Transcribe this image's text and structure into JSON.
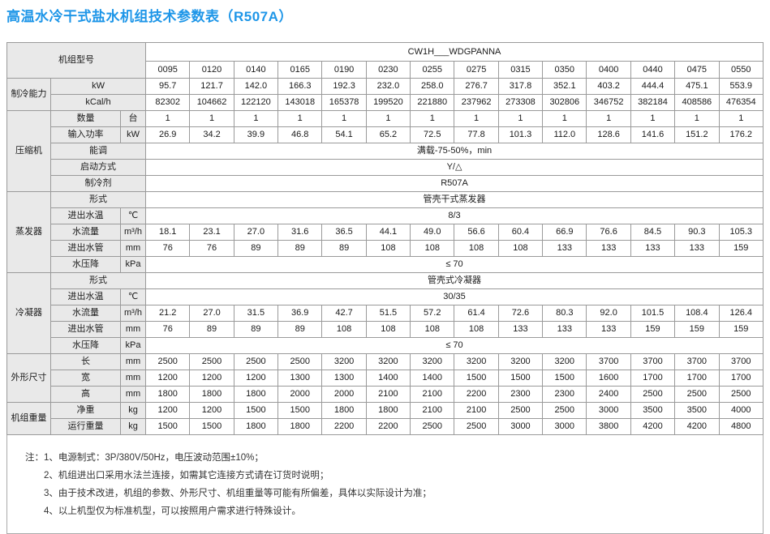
{
  "title": "高温水冷干式盐水机组技术参数表（R507A）",
  "colors": {
    "title_blue": "#1E96E8",
    "header_gray": "#E9E9E9",
    "grid_border": "#9A9A9A"
  },
  "table": {
    "model_label": "机组型号",
    "series_header": "CW1H___WDGPANNA",
    "models": [
      "0095",
      "0120",
      "0140",
      "0165",
      "0190",
      "0230",
      "0255",
      "0275",
      "0315",
      "0350",
      "0400",
      "0440",
      "0475",
      "0550"
    ],
    "sections": [
      {
        "name": "制冷能力",
        "rows": [
          {
            "param": "kW",
            "values": [
              "95.7",
              "121.7",
              "142.0",
              "166.3",
              "192.3",
              "232.0",
              "258.0",
              "276.7",
              "317.8",
              "352.1",
              "403.2",
              "444.4",
              "475.1",
              "553.9"
            ]
          },
          {
            "param": "kCal/h",
            "values": [
              "82302",
              "104662",
              "122120",
              "143018",
              "165378",
              "199520",
              "221880",
              "237962",
              "273308",
              "302806",
              "346752",
              "382184",
              "408586",
              "476354"
            ]
          }
        ]
      },
      {
        "name": "压缩机",
        "rows": [
          {
            "param": "数量",
            "unit": "台",
            "values": [
              "1",
              "1",
              "1",
              "1",
              "1",
              "1",
              "1",
              "1",
              "1",
              "1",
              "1",
              "1",
              "1",
              "1"
            ]
          },
          {
            "param": "输入功率",
            "unit": "kW",
            "values": [
              "26.9",
              "34.2",
              "39.9",
              "46.8",
              "54.1",
              "65.2",
              "72.5",
              "77.8",
              "101.3",
              "112.0",
              "128.6",
              "141.6",
              "151.2",
              "176.2"
            ]
          },
          {
            "param": "能调",
            "merged": "满载-75-50%，min"
          },
          {
            "param": "启动方式",
            "merged": "Y/△"
          },
          {
            "param": "制冷剂",
            "merged": "R507A"
          }
        ]
      },
      {
        "name": "蒸发器",
        "rows": [
          {
            "param": "形式",
            "merged": "管壳干式蒸发器"
          },
          {
            "param": "进出水温",
            "unit": "℃",
            "merged": "8/3"
          },
          {
            "param": "水流量",
            "unit": "m³/h",
            "values": [
              "18.1",
              "23.1",
              "27.0",
              "31.6",
              "36.5",
              "44.1",
              "49.0",
              "56.6",
              "60.4",
              "66.9",
              "76.6",
              "84.5",
              "90.3",
              "105.3"
            ]
          },
          {
            "param": "进出水管",
            "unit": "mm",
            "values": [
              "76",
              "76",
              "89",
              "89",
              "89",
              "108",
              "108",
              "108",
              "108",
              "133",
              "133",
              "133",
              "133",
              "159"
            ]
          },
          {
            "param": "水压降",
            "unit": "kPa",
            "merged": "≤ 70"
          }
        ]
      },
      {
        "name": "冷凝器",
        "rows": [
          {
            "param": "形式",
            "merged": "管壳式冷凝器"
          },
          {
            "param": "进出水温",
            "unit": "℃",
            "merged": "30/35"
          },
          {
            "param": "水流量",
            "unit": "m³/h",
            "values": [
              "21.2",
              "27.0",
              "31.5",
              "36.9",
              "42.7",
              "51.5",
              "57.2",
              "61.4",
              "72.6",
              "80.3",
              "92.0",
              "101.5",
              "108.4",
              "126.4"
            ]
          },
          {
            "param": "进出水管",
            "unit": "mm",
            "values": [
              "76",
              "89",
              "89",
              "89",
              "108",
              "108",
              "108",
              "108",
              "133",
              "133",
              "133",
              "159",
              "159",
              "159"
            ]
          },
          {
            "param": "水压降",
            "unit": "kPa",
            "merged": "≤ 70"
          }
        ]
      },
      {
        "name": "外形尺寸",
        "rows": [
          {
            "param": "长",
            "unit": "mm",
            "values": [
              "2500",
              "2500",
              "2500",
              "2500",
              "3200",
              "3200",
              "3200",
              "3200",
              "3200",
              "3200",
              "3700",
              "3700",
              "3700",
              "3700"
            ]
          },
          {
            "param": "宽",
            "unit": "mm",
            "values": [
              "1200",
              "1200",
              "1200",
              "1300",
              "1300",
              "1400",
              "1400",
              "1500",
              "1500",
              "1500",
              "1600",
              "1700",
              "1700",
              "1700"
            ]
          },
          {
            "param": "高",
            "unit": "mm",
            "values": [
              "1800",
              "1800",
              "1800",
              "2000",
              "2000",
              "2100",
              "2100",
              "2200",
              "2300",
              "2300",
              "2400",
              "2500",
              "2500",
              "2500"
            ]
          }
        ]
      },
      {
        "name": "机组重量",
        "rows": [
          {
            "param": "净重",
            "unit": "kg",
            "values": [
              "1200",
              "1200",
              "1500",
              "1500",
              "1800",
              "1800",
              "2100",
              "2100",
              "2500",
              "2500",
              "3000",
              "3500",
              "3500",
              "4000"
            ]
          },
          {
            "param": "运行重量",
            "unit": "kg",
            "values": [
              "1500",
              "1500",
              "1800",
              "1800",
              "2200",
              "2200",
              "2500",
              "2500",
              "3000",
              "3000",
              "3800",
              "4200",
              "4200",
              "4800"
            ]
          }
        ]
      }
    ]
  },
  "notes": {
    "prefix": "注：",
    "items": [
      "1、电源制式：3P/380V/50Hz，电压波动范围±10%；",
      "2、机组进出口采用水法兰连接，如需其它连接方式请在订货时说明；",
      "3、由于技术改进，机组的参数、外形尺寸、机组重量等可能有所偏差，具体以实际设计为准；",
      "4、以上机型仅为标准机型，可以按照用户需求进行特殊设计。"
    ]
  }
}
